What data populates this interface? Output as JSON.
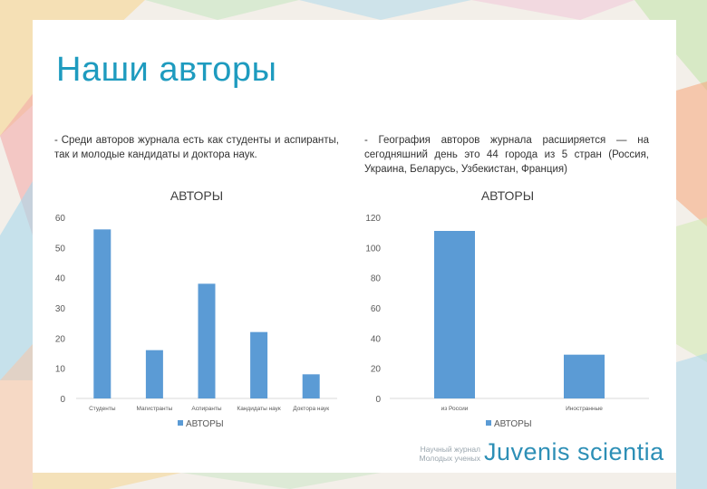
{
  "slide": {
    "title": "Наши авторы",
    "left_text": "- Среди авторов журнала есть как студенты и аспиранты, так и молодые кандидаты и доктора наук.",
    "right_text": "- География авторов журнала расширяется — на сегодняшний день это 44 города из 5 стран (Россия, Украина, Беларусь, Узбекистан, Франция)"
  },
  "brand": {
    "small_line1": "Научный журнал",
    "small_line2": "Молодых ученых",
    "name": "Juvenis scientia"
  },
  "colors": {
    "bar": "#5b9bd5",
    "title": "#1e9bbf",
    "brand": "#2d8fb6"
  },
  "chart_data": [
    {
      "type": "bar",
      "title": "АВТОРЫ",
      "categories": [
        "Студенты",
        "Магистранты",
        "Аспиранты",
        "Кандидаты наук",
        "Доктора наук"
      ],
      "series": [
        {
          "name": "АВТОРЫ",
          "values": [
            56,
            16,
            38,
            22,
            8
          ]
        }
      ],
      "yticks": [
        0,
        10,
        20,
        30,
        40,
        50,
        60
      ],
      "ylim": [
        0,
        60
      ],
      "grid": false,
      "legend": "bottom"
    },
    {
      "type": "bar",
      "title": "АВТОРЫ",
      "categories": [
        "из России",
        "Иностранные"
      ],
      "series": [
        {
          "name": "АВТОРЫ",
          "values": [
            111,
            29
          ]
        }
      ],
      "yticks": [
        0,
        20,
        40,
        60,
        80,
        100,
        120
      ],
      "ylim": [
        0,
        120
      ],
      "grid": false,
      "legend": "bottom"
    }
  ]
}
